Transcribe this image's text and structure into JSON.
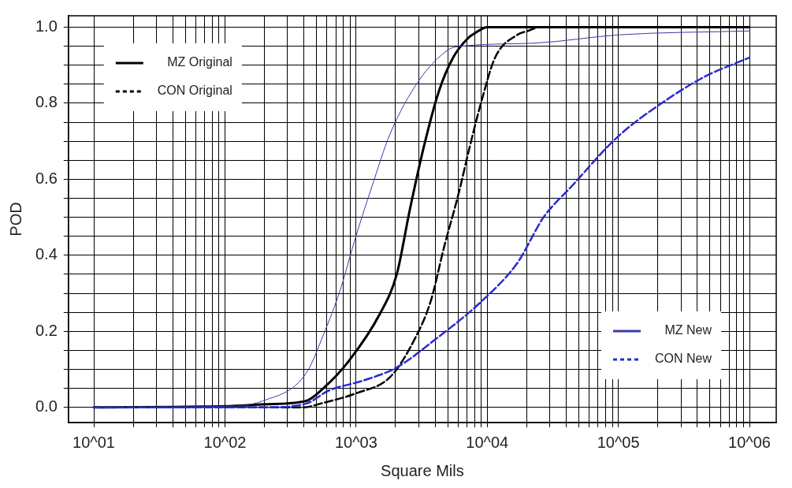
{
  "chart_data": {
    "type": "line",
    "xlabel": "Square Mils",
    "ylabel": "POD",
    "log": "x",
    "xlim": [
      6.4,
      1600000
    ],
    "ylim": [
      -0.04,
      1.03
    ],
    "xticks": [
      {
        "value": 10,
        "label": "10^01"
      },
      {
        "value": 20,
        "label": null
      },
      {
        "value": 30,
        "label": null
      },
      {
        "value": 40,
        "label": null
      },
      {
        "value": 50,
        "label": null
      },
      {
        "value": 60,
        "label": null
      },
      {
        "value": 70,
        "label": null
      },
      {
        "value": 80,
        "label": null
      },
      {
        "value": 90,
        "label": null
      },
      {
        "value": 100,
        "label": "10^02"
      },
      {
        "value": 200,
        "label": null
      },
      {
        "value": 300,
        "label": null
      },
      {
        "value": 400,
        "label": null
      },
      {
        "value": 500,
        "label": null
      },
      {
        "value": 600,
        "label": null
      },
      {
        "value": 700,
        "label": null
      },
      {
        "value": 800,
        "label": null
      },
      {
        "value": 900,
        "label": null
      },
      {
        "value": 1000,
        "label": "10^03"
      },
      {
        "value": 2000,
        "label": null
      },
      {
        "value": 3000,
        "label": null
      },
      {
        "value": 4000,
        "label": null
      },
      {
        "value": 5000,
        "label": null
      },
      {
        "value": 6000,
        "label": null
      },
      {
        "value": 7000,
        "label": null
      },
      {
        "value": 8000,
        "label": null
      },
      {
        "value": 9000,
        "label": null
      },
      {
        "value": 10000,
        "label": "10^04"
      },
      {
        "value": 20000,
        "label": null
      },
      {
        "value": 30000,
        "label": null
      },
      {
        "value": 40000,
        "label": null
      },
      {
        "value": 50000,
        "label": null
      },
      {
        "value": 60000,
        "label": null
      },
      {
        "value": 70000,
        "label": null
      },
      {
        "value": 80000,
        "label": null
      },
      {
        "value": 90000,
        "label": null
      },
      {
        "value": 100000,
        "label": "10^05"
      },
      {
        "value": 200000,
        "label": null
      },
      {
        "value": 300000,
        "label": null
      },
      {
        "value": 400000,
        "label": null
      },
      {
        "value": 500000,
        "label": null
      },
      {
        "value": 600000,
        "label": null
      },
      {
        "value": 700000,
        "label": null
      },
      {
        "value": 800000,
        "label": null
      },
      {
        "value": 900000,
        "label": null
      },
      {
        "value": 1000000,
        "label": "10^06"
      }
    ],
    "yticks": [
      {
        "value": 0,
        "label": "0.0"
      },
      {
        "value": 0.05,
        "label": null
      },
      {
        "value": 0.1,
        "label": null
      },
      {
        "value": 0.15,
        "label": null
      },
      {
        "value": 0.2,
        "label": "0.2"
      },
      {
        "value": 0.25,
        "label": null
      },
      {
        "value": 0.3,
        "label": null
      },
      {
        "value": 0.35,
        "label": null
      },
      {
        "value": 0.4,
        "label": "0.4"
      },
      {
        "value": 0.45,
        "label": null
      },
      {
        "value": 0.5,
        "label": null
      },
      {
        "value": 0.55,
        "label": null
      },
      {
        "value": 0.6,
        "label": "0.6"
      },
      {
        "value": 0.65,
        "label": null
      },
      {
        "value": 0.7,
        "label": null
      },
      {
        "value": 0.75,
        "label": null
      },
      {
        "value": 0.8,
        "label": "0.8"
      },
      {
        "value": 0.85,
        "label": null
      },
      {
        "value": 0.9,
        "label": null
      },
      {
        "value": 0.95,
        "label": null
      },
      {
        "value": 1.0,
        "label": "1.0"
      }
    ],
    "grid": true,
    "legend": "top left",
    "marker": "none",
    "series": [
      {
        "name": "MZ Original",
        "color": "#000000",
        "line_style": "solid",
        "x": [
          10,
          100,
          200,
          417,
          562,
          871,
          1514,
          2042,
          2570,
          3311,
          4266,
          5495,
          7079,
          8128,
          10000,
          1000000
        ],
        "values": [
          0,
          0.003,
          0.008,
          0.017,
          0.05,
          0.12,
          0.245,
          0.35,
          0.52,
          0.69,
          0.83,
          0.92,
          0.97,
          0.985,
          1.0,
          1.0
        ]
      },
      {
        "name": "CON Original",
        "color": "#000000",
        "line_style": "dashed",
        "x": [
          10,
          400,
          537,
          1000,
          1820,
          2754,
          3715,
          4677,
          6026,
          7413,
          9120,
          11482,
          16982,
          20417,
          25119,
          1000000
        ],
        "values": [
          0,
          0,
          0.01,
          0.037,
          0.08,
          0.175,
          0.28,
          0.42,
          0.56,
          0.69,
          0.81,
          0.92,
          0.98,
          0.99,
          1.0,
          1.0
        ]
      },
      {
        "name": "MZ New",
        "color": "#3a3aa8",
        "line_style": "solid",
        "x": [
          10,
          100,
          195,
          417,
          562,
          759,
          977,
          1318,
          1820,
          3020,
          5012,
          5754,
          22909,
          102329,
          1000000
        ],
        "values": [
          0,
          0.003,
          0.017,
          0.09,
          0.19,
          0.31,
          0.44,
          0.58,
          0.72,
          0.86,
          0.94,
          0.948,
          0.958,
          0.98,
          0.99
        ]
      },
      {
        "name": "CON New",
        "color": "#2a2ad0",
        "line_style": "dashed",
        "x": [
          10,
          200,
          417,
          617,
          1122,
          2042,
          3890,
          9120,
          16982,
          26915,
          43652,
          97724,
          213796,
          457088,
          1000000
        ],
        "values": [
          0,
          0,
          0.01,
          0.044,
          0.07,
          0.105,
          0.175,
          0.28,
          0.38,
          0.5,
          0.58,
          0.71,
          0.8,
          0.87,
          0.92
        ]
      }
    ]
  }
}
